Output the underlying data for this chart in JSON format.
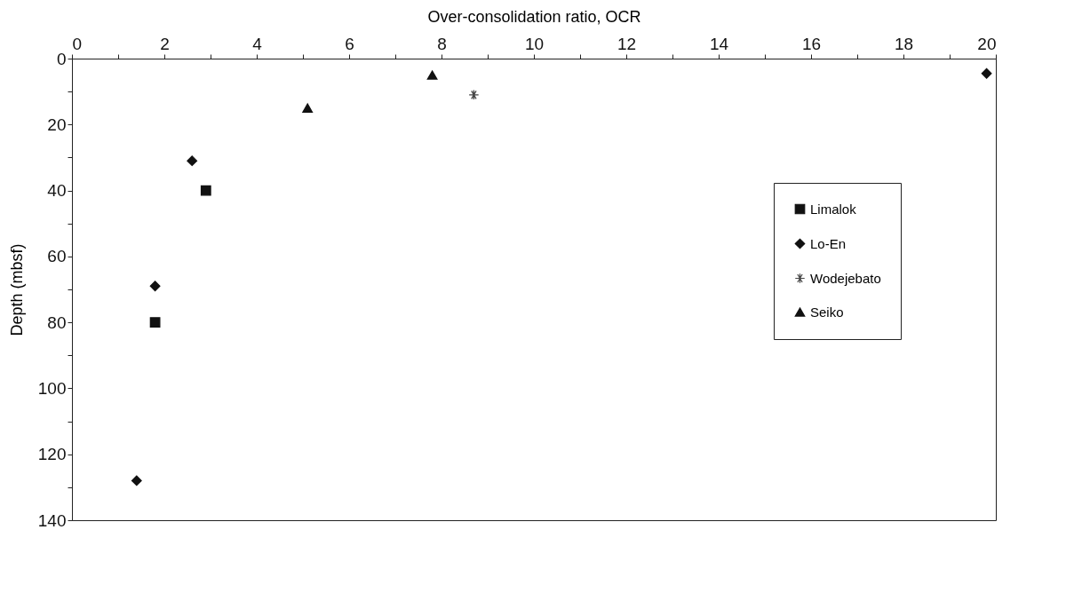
{
  "chart_data": {
    "type": "scatter",
    "xlabel": "Over-consolidation ratio, OCR",
    "ylabel": "Depth (mbsf)",
    "xlim": [
      0,
      20
    ],
    "xticks": [
      0,
      {
        "value": 1,
        "label": null
      },
      2,
      {
        "value": 3,
        "label": null
      },
      4,
      {
        "value": 5,
        "label": null
      },
      6,
      {
        "value": 7,
        "label": null
      },
      8,
      {
        "value": 9,
        "label": null
      },
      10,
      {
        "value": 11,
        "label": null
      },
      12,
      {
        "value": 13,
        "label": null
      },
      14,
      {
        "value": 15,
        "label": null
      },
      16,
      {
        "value": 17,
        "label": null
      },
      18,
      {
        "value": 19,
        "label": null
      },
      20
    ],
    "ylim": [
      140,
      0
    ],
    "yticks": [
      0,
      {
        "value": 10,
        "label": null
      },
      20,
      {
        "value": 30,
        "label": null
      },
      40,
      {
        "value": 50,
        "label": null
      },
      60,
      {
        "value": 70,
        "label": null
      },
      80,
      {
        "value": 90,
        "label": null
      },
      100,
      {
        "value": 110,
        "label": null
      },
      120,
      {
        "value": 130,
        "label": null
      },
      140
    ],
    "grid": false,
    "legend": "right",
    "series": [
      {
        "name": "Limalok",
        "color": "#111111",
        "marker": "square",
        "x": [
          2.9,
          1.8
        ],
        "values": [
          40,
          80
        ]
      },
      {
        "name": "Lo-En",
        "color": "#111111",
        "marker": "diamond",
        "x": [
          19.8,
          2.6,
          1.8,
          1.4
        ],
        "values": [
          4.5,
          31,
          69,
          128
        ]
      },
      {
        "name": "Wodejebato",
        "color": "#444444",
        "marker": "cross",
        "x": [
          8.7
        ],
        "values": [
          11
        ]
      },
      {
        "name": "Seiko",
        "color": "#111111",
        "marker": "triangle",
        "x": [
          7.8,
          5.1
        ],
        "values": [
          5,
          15
        ]
      }
    ]
  }
}
